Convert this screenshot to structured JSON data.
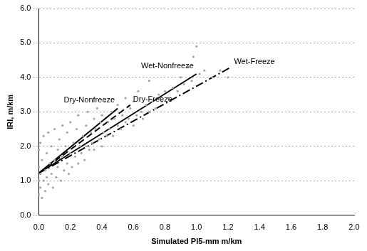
{
  "chart_data": {
    "type": "scatter",
    "x_label": "Simulated PI5-mm m/km",
    "y_label": "IRI, m/km",
    "xlim": [
      0,
      2
    ],
    "ylim": [
      0,
      6
    ],
    "xticks": [
      {
        "value": 0,
        "label": "0.0"
      },
      0.2,
      0.4,
      0.6,
      0.8,
      {
        "value": 1,
        "label": "1.0"
      },
      1.2,
      1.4,
      1.6,
      1.8,
      {
        "value": 2,
        "label": "2.0"
      }
    ],
    "yticks": [
      {
        "value": 0,
        "label": "0.0"
      },
      {
        "value": 1,
        "label": "1.0"
      },
      {
        "value": 2,
        "label": "2.0"
      },
      {
        "value": 3,
        "label": "3.0"
      },
      {
        "value": 4,
        "label": "4.0"
      },
      {
        "value": 5,
        "label": "5.0"
      },
      {
        "value": 6,
        "label": "6.0"
      }
    ],
    "grid": "y",
    "series": [
      {
        "type": "scatter",
        "color": "#a6a6a6",
        "marker": "circle",
        "x": [
          0.0,
          0.0,
          0.0,
          0.0,
          0.01,
          0.01,
          0.01,
          0.02,
          0.02,
          0.03,
          0.03,
          0.04,
          0.04,
          0.05,
          0.05,
          0.06,
          0.06,
          0.07,
          0.08,
          0.08,
          0.09,
          0.1,
          0.1,
          0.11,
          0.12,
          0.12,
          0.13,
          0.14,
          0.15,
          0.15,
          0.16,
          0.17,
          0.18,
          0.18,
          0.19,
          0.2,
          0.2,
          0.21,
          0.22,
          0.23,
          0.24,
          0.25,
          0.25,
          0.26,
          0.27,
          0.28,
          0.29,
          0.3,
          0.3,
          0.31,
          0.32,
          0.33,
          0.34,
          0.35,
          0.35,
          0.36,
          0.37,
          0.38,
          0.39,
          0.4,
          0.4,
          0.41,
          0.42,
          0.43,
          0.44,
          0.45,
          0.46,
          0.47,
          0.48,
          0.5,
          0.5,
          0.52,
          0.53,
          0.55,
          0.55,
          0.57,
          0.58,
          0.6,
          0.6,
          0.62,
          0.63,
          0.65,
          0.66,
          0.68,
          0.7,
          0.7,
          0.72,
          0.74,
          0.76,
          0.78,
          0.8,
          0.82,
          0.85,
          0.88,
          0.9,
          0.92,
          0.95,
          0.97,
          0.98,
          1.0,
          1.02,
          1.05,
          1.1,
          1.15,
          1.2
        ],
        "values": [
          0.6,
          1.0,
          1.4,
          1.9,
          0.8,
          1.2,
          2.1,
          0.5,
          1.6,
          1.0,
          2.3,
          1.3,
          0.7,
          1.8,
          1.1,
          2.4,
          0.9,
          1.5,
          1.2,
          2.0,
          0.8,
          1.6,
          2.5,
          1.1,
          1.9,
          1.4,
          2.2,
          1.0,
          1.7,
          2.6,
          1.3,
          2.0,
          1.5,
          2.4,
          1.2,
          1.8,
          2.7,
          1.4,
          2.1,
          1.7,
          2.5,
          1.5,
          2.9,
          2.0,
          1.8,
          2.3,
          1.6,
          2.6,
          2.0,
          3.0,
          1.9,
          2.4,
          2.1,
          2.8,
          1.9,
          2.5,
          3.1,
          2.2,
          2.7,
          2.0,
          2.9,
          2.4,
          3.3,
          2.3,
          2.7,
          2.5,
          3.0,
          2.3,
          2.8,
          2.6,
          3.2,
          2.5,
          2.9,
          2.7,
          3.4,
          2.8,
          3.1,
          2.6,
          3.3,
          2.9,
          3.6,
          3.0,
          2.8,
          3.2,
          3.0,
          3.9,
          3.3,
          3.1,
          3.5,
          3.3,
          3.6,
          3.4,
          3.7,
          3.6,
          4.0,
          3.8,
          4.3,
          3.9,
          4.6,
          4.9,
          4.1,
          4.2,
          4.0,
          4.2,
          4.0
        ]
      },
      {
        "name": "Dry-Nonfreeze",
        "type": "line",
        "color": "#000000",
        "line_style": "solid",
        "x": [
          0,
          0.5
        ],
        "values": [
          1.22,
          3.1
        ]
      },
      {
        "name": "Dry-Freeze",
        "type": "line",
        "color": "#000000",
        "line_style": "dashed",
        "x": [
          0,
          0.58
        ],
        "values": [
          1.22,
          3.2
        ]
      },
      {
        "name": "Wet-Nonfreeze",
        "type": "line",
        "color": "#000000",
        "line_style": "solid",
        "x": [
          0,
          1.0
        ],
        "values": [
          1.22,
          4.1
        ]
      },
      {
        "name": "Wet-Freeze",
        "type": "line",
        "color": "#000000",
        "line_style": "dashdot",
        "x": [
          0,
          1.22
        ],
        "values": [
          1.22,
          4.3
        ]
      }
    ]
  }
}
